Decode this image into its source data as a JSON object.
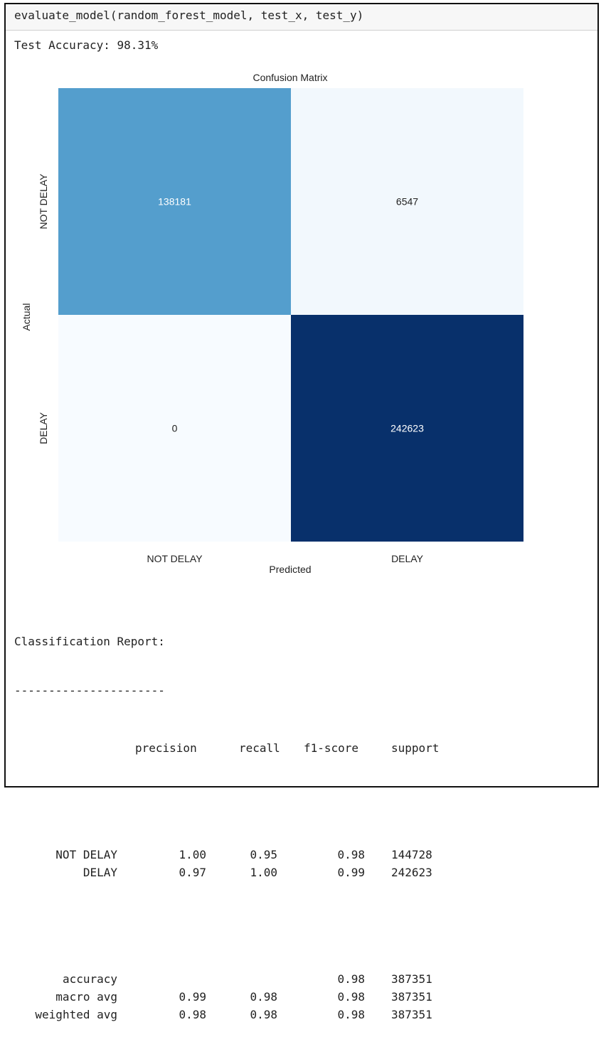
{
  "code_cell": {
    "source": "evaluate_model(random_forest_model, test_x, test_y)"
  },
  "output": {
    "accuracy_line": "Test Accuracy: 98.31%"
  },
  "chart_data": {
    "type": "heatmap",
    "title": "Confusion Matrix",
    "xlabel": "Predicted",
    "ylabel": "Actual",
    "x_categories": [
      "NOT DELAY",
      "DELAY"
    ],
    "y_categories": [
      "NOT DELAY",
      "DELAY"
    ],
    "values": [
      [
        138181,
        6547
      ],
      [
        0,
        242623
      ]
    ],
    "colormap": "Blues",
    "colorbar": false,
    "colors": {
      "low": "#f7fbff",
      "high": "#08306b"
    }
  },
  "report": {
    "title": "Classification Report:",
    "divider": "----------------------",
    "headers": [
      "precision",
      "recall",
      "f1-score",
      "support"
    ],
    "rows": [
      {
        "label": "NOT DELAY",
        "precision": "1.00",
        "recall": "0.95",
        "f1": "0.98",
        "support": "144728"
      },
      {
        "label": "DELAY",
        "precision": "0.97",
        "recall": "1.00",
        "f1": "0.99",
        "support": "242623"
      }
    ],
    "summary": [
      {
        "label": "accuracy",
        "precision": "",
        "recall": "",
        "f1": "0.98",
        "support": "387351"
      },
      {
        "label": "macro avg",
        "precision": "0.99",
        "recall": "0.98",
        "f1": "0.98",
        "support": "387351"
      },
      {
        "label": "weighted avg",
        "precision": "0.98",
        "recall": "0.98",
        "f1": "0.98",
        "support": "387351"
      }
    ]
  }
}
